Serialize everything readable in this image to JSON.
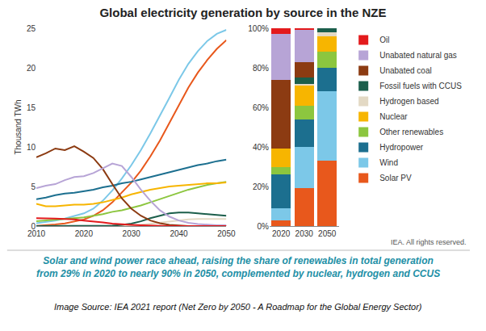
{
  "title": "Global electricity generation by source in the NZE",
  "credit": "IEA. All rights reserved.",
  "caption": [
    "Solar and wind power race ahead, raising the share of renewables in total generation",
    "from 29% in 2020 to nearly 90% in 2050, complemented by nuclear, hydrogen and CCUS"
  ],
  "source": "Image Source: IEA 2021 report (Net Zero by 2050 - A Roadmap for the Global Energy Sector)",
  "chart_data": [
    {
      "type": "line",
      "y_label": "Thousand TWh",
      "x": [
        2010,
        2012,
        2014,
        2016,
        2018,
        2020,
        2022,
        2024,
        2026,
        2028,
        2030,
        2032,
        2034,
        2036,
        2038,
        2040,
        2042,
        2044,
        2046,
        2048,
        2050
      ],
      "xlim": [
        2010,
        2050
      ],
      "xticks": [
        2010,
        2020,
        2030,
        2040,
        2050
      ],
      "ylim": [
        0,
        25
      ],
      "yticks": [
        0,
        5,
        10,
        15,
        20,
        25
      ],
      "grid": false,
      "series": [
        {
          "name": "Solar PV",
          "color": "#e8581c",
          "values": [
            0.03,
            0.1,
            0.2,
            0.33,
            0.55,
            0.83,
            1.3,
            2.0,
            3.0,
            4.2,
            5.5,
            7.0,
            8.8,
            10.8,
            13.0,
            15.3,
            17.5,
            19.4,
            21.0,
            22.4,
            23.5
          ]
        },
        {
          "name": "Wind",
          "color": "#7cc8e8",
          "values": [
            0.35,
            0.5,
            0.7,
            0.95,
            1.25,
            1.6,
            2.2,
            3.2,
            4.5,
            6.0,
            7.7,
            9.6,
            11.7,
            13.9,
            16.2,
            18.5,
            20.5,
            22.1,
            23.4,
            24.3,
            24.8
          ]
        },
        {
          "name": "Hydropower",
          "color": "#1c6f8f",
          "values": [
            3.4,
            3.6,
            3.9,
            4.1,
            4.2,
            4.4,
            4.6,
            4.9,
            5.1,
            5.4,
            5.6,
            5.9,
            6.2,
            6.5,
            6.8,
            7.1,
            7.4,
            7.7,
            7.9,
            8.2,
            8.4
          ]
        },
        {
          "name": "Other renewables",
          "color": "#8cc63f",
          "values": [
            0.6,
            0.7,
            0.8,
            0.9,
            1.0,
            1.1,
            1.3,
            1.5,
            1.8,
            2.0,
            2.3,
            2.6,
            3.0,
            3.4,
            3.8,
            4.2,
            4.6,
            4.9,
            5.2,
            5.4,
            5.6
          ]
        },
        {
          "name": "Nuclear",
          "color": "#f7b500",
          "values": [
            2.8,
            2.5,
            2.5,
            2.6,
            2.7,
            2.7,
            2.8,
            3.0,
            3.3,
            3.6,
            4.0,
            4.3,
            4.6,
            4.8,
            5.0,
            5.1,
            5.2,
            5.3,
            5.4,
            5.4,
            5.5
          ]
        },
        {
          "name": "Hydrogen based",
          "color": "#e3d9c4",
          "values": [
            0,
            0,
            0,
            0,
            0,
            0,
            0,
            0,
            0,
            0,
            0.05,
            0.15,
            0.3,
            0.45,
            0.6,
            0.75,
            0.85,
            0.9,
            0.9,
            0.9,
            0.9
          ]
        },
        {
          "name": "Fossil fuels with CCUS",
          "color": "#1b5e4b",
          "values": [
            0,
            0,
            0,
            0,
            0,
            0,
            0,
            0,
            0.05,
            0.15,
            0.3,
            0.6,
            1.0,
            1.3,
            1.6,
            1.7,
            1.7,
            1.6,
            1.5,
            1.4,
            1.3
          ]
        },
        {
          "name": "Unabated coal",
          "color": "#8c3b12",
          "values": [
            8.7,
            9.2,
            9.8,
            9.6,
            10.1,
            9.4,
            8.6,
            7.2,
            5.3,
            3.5,
            2.2,
            1.3,
            0.7,
            0.35,
            0.15,
            0.05,
            0,
            0,
            0,
            0,
            0
          ]
        },
        {
          "name": "Unabated natural gas",
          "color": "#b7a4d6",
          "values": [
            4.8,
            5.1,
            5.3,
            5.8,
            6.2,
            6.3,
            6.7,
            7.3,
            7.9,
            7.6,
            6.2,
            4.6,
            3.2,
            2.0,
            1.2,
            0.7,
            0.4,
            0.25,
            0.15,
            0.1,
            0.1
          ]
        },
        {
          "name": "Oil",
          "color": "#e31a1c",
          "values": [
            1.0,
            1.0,
            0.95,
            0.9,
            0.85,
            0.7,
            0.6,
            0.45,
            0.3,
            0.2,
            0.15,
            0.1,
            0.05,
            0.03,
            0.01,
            0,
            0,
            0,
            0,
            0,
            0
          ]
        }
      ]
    },
    {
      "type": "bar",
      "stacked": true,
      "legend": "right",
      "categories": [
        "2020",
        "2030",
        "2050"
      ],
      "ylim": [
        0,
        100
      ],
      "yticks": [
        {
          "value": 0,
          "label": "0%"
        },
        {
          "value": 20,
          "label": "20%"
        },
        {
          "value": 40,
          "label": "40%"
        },
        {
          "value": 60,
          "label": "60%"
        },
        {
          "value": 80,
          "label": "80%"
        },
        {
          "value": 100,
          "label": "100%"
        }
      ],
      "grid": false,
      "series": [
        {
          "name": "Solar PV",
          "color": "#e8581c",
          "values": [
            3,
            19,
            33
          ]
        },
        {
          "name": "Wind",
          "color": "#7cc8e8",
          "values": [
            6,
            21,
            35
          ]
        },
        {
          "name": "Hydropower",
          "color": "#1c6f8f",
          "values": [
            17,
            14,
            12
          ]
        },
        {
          "name": "Other renewables",
          "color": "#8cc63f",
          "values": [
            4,
            7,
            8
          ]
        },
        {
          "name": "Nuclear",
          "color": "#f7b500",
          "values": [
            9,
            10,
            8
          ]
        },
        {
          "name": "Hydrogen based",
          "color": "#e3d9c4",
          "values": [
            0,
            1,
            2
          ]
        },
        {
          "name": "Fossil fuels with CCUS",
          "color": "#1b5e4b",
          "values": [
            0,
            3,
            2
          ]
        },
        {
          "name": "Unabated coal",
          "color": "#8c3b12",
          "values": [
            35,
            8,
            0
          ]
        },
        {
          "name": "Unabated natural gas",
          "color": "#b7a4d6",
          "values": [
            23,
            16,
            0
          ]
        },
        {
          "name": "Oil",
          "color": "#e31a1c",
          "values": [
            3,
            1,
            0
          ]
        }
      ]
    }
  ]
}
